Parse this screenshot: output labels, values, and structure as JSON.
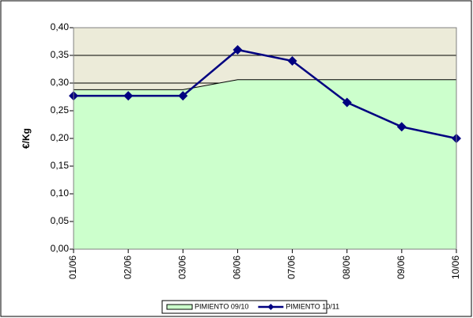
{
  "chart_data": {
    "type": "line",
    "ylabel": "€/Kg",
    "categories": [
      "01/06",
      "02/06",
      "03/06",
      "06/06",
      "07/06",
      "08/06",
      "09/06",
      "10/06"
    ],
    "series": [
      {
        "name": "PIMIENTO 09/10",
        "type": "area",
        "color": "#ccffcc",
        "values": [
          0.288,
          0.288,
          0.288,
          0.306,
          0.306,
          0.306,
          0.306,
          0.306
        ]
      },
      {
        "name": "PIMIENTO 10/11",
        "type": "line",
        "color": "#000080",
        "values": [
          0.277,
          0.277,
          0.277,
          0.36,
          0.34,
          0.265,
          0.221,
          0.2
        ]
      }
    ],
    "ylim": [
      0,
      0.4
    ],
    "yticks": [
      {
        "value": 0,
        "label": "0,00"
      },
      {
        "value": 0.05,
        "label": "0,05"
      },
      {
        "value": 0.1,
        "label": "0,10"
      },
      {
        "value": 0.15,
        "label": "0,15"
      },
      {
        "value": 0.2,
        "label": "0,20"
      },
      {
        "value": 0.25,
        "label": "0,25"
      },
      {
        "value": 0.3,
        "label": "0,30"
      },
      {
        "value": 0.35,
        "label": "0,35"
      },
      {
        "value": 0.4,
        "label": "0,40"
      }
    ],
    "grid": true,
    "plot_background": "#ecebd9",
    "legend": "bottom"
  }
}
